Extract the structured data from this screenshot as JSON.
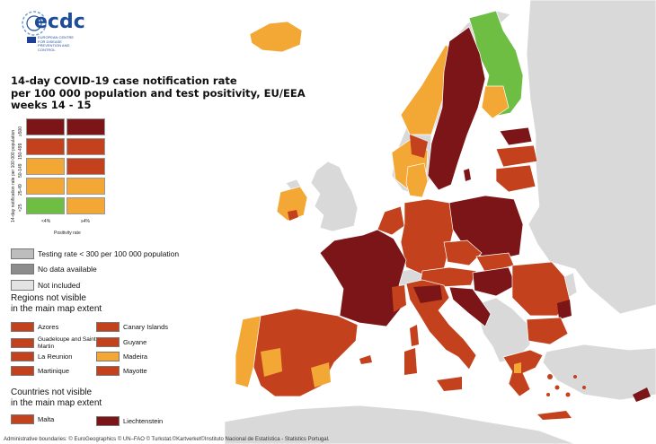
{
  "logo": {
    "text": "ecdc",
    "subtitle": "EUROPEAN CENTRE FOR DISEASE PREVENTION AND CONTROL"
  },
  "title": {
    "line1": "14-day COVID-19 case notification rate",
    "line2": "per 100 000 population and test positivity, EU/EEA",
    "line3": "weeks 14 - 15"
  },
  "matrix": {
    "y_axis_title": "14-day notification rate per 100 000 population",
    "x_axis_title": "Positivity rate",
    "rows": [
      "≥500",
      "150-499",
      "50-149",
      "25-49",
      "<25"
    ],
    "columns": [
      "<4%",
      "≥4%"
    ],
    "colors": [
      [
        "#7b1518",
        "#7b1518"
      ],
      [
        "#c3411d",
        "#c3411d"
      ],
      [
        "#f3a735",
        "#c3411d"
      ],
      [
        "#f3a735",
        "#f3a735"
      ],
      [
        "#6ebe44",
        "#f3a735"
      ]
    ]
  },
  "legend": {
    "testing_rate": "Testing rate < 300 per 100 000 population",
    "no_data": "No data available",
    "not_included": "Not included"
  },
  "regions_heading": {
    "line1": "Regions not visible",
    "line2": "in the main map extent"
  },
  "regions": [
    {
      "name": "Azores",
      "color": "#c3411d"
    },
    {
      "name": "Canary Islands",
      "color": "#c3411d"
    },
    {
      "name": "Guadeloupe and Saint Martin",
      "color": "#c3411d"
    },
    {
      "name": "Guyane",
      "color": "#c3411d"
    },
    {
      "name": "La Reunion",
      "color": "#c3411d"
    },
    {
      "name": "Madeira",
      "color": "#f3a735"
    },
    {
      "name": "Martinique",
      "color": "#c3411d"
    },
    {
      "name": "Mayotte",
      "color": "#c3411d"
    }
  ],
  "countries_heading": {
    "line1": "Countries not visible",
    "line2": "in the main map extent"
  },
  "countries": [
    {
      "name": "Malta",
      "color": "#c3411d"
    },
    {
      "name": "Liechtenstein",
      "color": "#7b1518"
    }
  ],
  "footer": "Administrative boundaries: © EuroGeographics © UN–FAO © Turkstat.©Kartverket©Instituto Nacional de Estatística - Statistics Portugal."
}
